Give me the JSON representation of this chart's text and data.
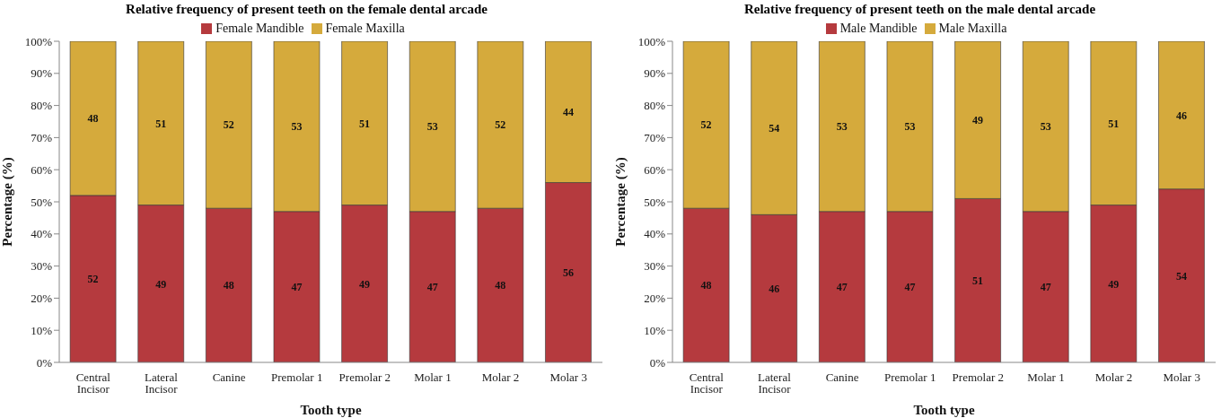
{
  "chart_data": [
    {
      "type": "bar",
      "title": "Relative frequency of present teeth on the female dental arcade",
      "xlabel": "Tooth type",
      "ylabel": "Percentage (%)",
      "categories": [
        "Central Incisor",
        "Lateral Incisor",
        "Canine",
        "Premolar 1",
        "Premolar 2",
        "Molar 1",
        "Molar 2",
        "Molar 3"
      ],
      "stacked": true,
      "data_labels": true,
      "legend": "top",
      "grid": false,
      "ylim": [
        0,
        100
      ],
      "yticks": [
        {
          "value": 0,
          "label": "0%"
        },
        {
          "value": 10,
          "label": "10%"
        },
        {
          "value": 20,
          "label": "20%"
        },
        {
          "value": 30,
          "label": "30%"
        },
        {
          "value": 40,
          "label": "40%"
        },
        {
          "value": 50,
          "label": "50%"
        },
        {
          "value": 60,
          "label": "60%"
        },
        {
          "value": 70,
          "label": "70%"
        },
        {
          "value": 80,
          "label": "80%"
        },
        {
          "value": 90,
          "label": "90%"
        },
        {
          "value": 100,
          "label": "100%"
        }
      ],
      "series": [
        {
          "name": "Female Mandible",
          "color": "#b53a3e",
          "values": [
            52,
            49,
            48,
            47,
            49,
            47,
            48,
            56
          ]
        },
        {
          "name": "Female Maxilla",
          "color": "#d5aa3c",
          "values": [
            48,
            51,
            52,
            53,
            51,
            53,
            52,
            44
          ]
        }
      ]
    },
    {
      "type": "bar",
      "title": "Relative frequency of present teeth on the male dental arcade",
      "xlabel": "Tooth type",
      "ylabel": "Percentage (%)",
      "categories": [
        "Central Incisor",
        "Lateral Incisor",
        "Canine",
        "Premolar 1",
        "Premolar 2",
        "Molar 1",
        "Molar 2",
        "Molar 3"
      ],
      "stacked": true,
      "data_labels": true,
      "legend": "top",
      "grid": false,
      "ylim": [
        0,
        100
      ],
      "yticks": [
        {
          "value": 0,
          "label": "0%"
        },
        {
          "value": 10,
          "label": "10%"
        },
        {
          "value": 20,
          "label": "20%"
        },
        {
          "value": 30,
          "label": "30%"
        },
        {
          "value": 40,
          "label": "40%"
        },
        {
          "value": 50,
          "label": "50%"
        },
        {
          "value": 60,
          "label": "60%"
        },
        {
          "value": 70,
          "label": "70%"
        },
        {
          "value": 80,
          "label": "80%"
        },
        {
          "value": 90,
          "label": "90%"
        },
        {
          "value": 100,
          "label": "100%"
        }
      ],
      "series": [
        {
          "name": "Male Mandible",
          "color": "#b53a3e",
          "values": [
            48,
            46,
            47,
            47,
            51,
            47,
            49,
            54
          ]
        },
        {
          "name": "Male Maxilla",
          "color": "#d5aa3c",
          "values": [
            52,
            54,
            53,
            53,
            49,
            53,
            51,
            46
          ]
        }
      ]
    }
  ]
}
